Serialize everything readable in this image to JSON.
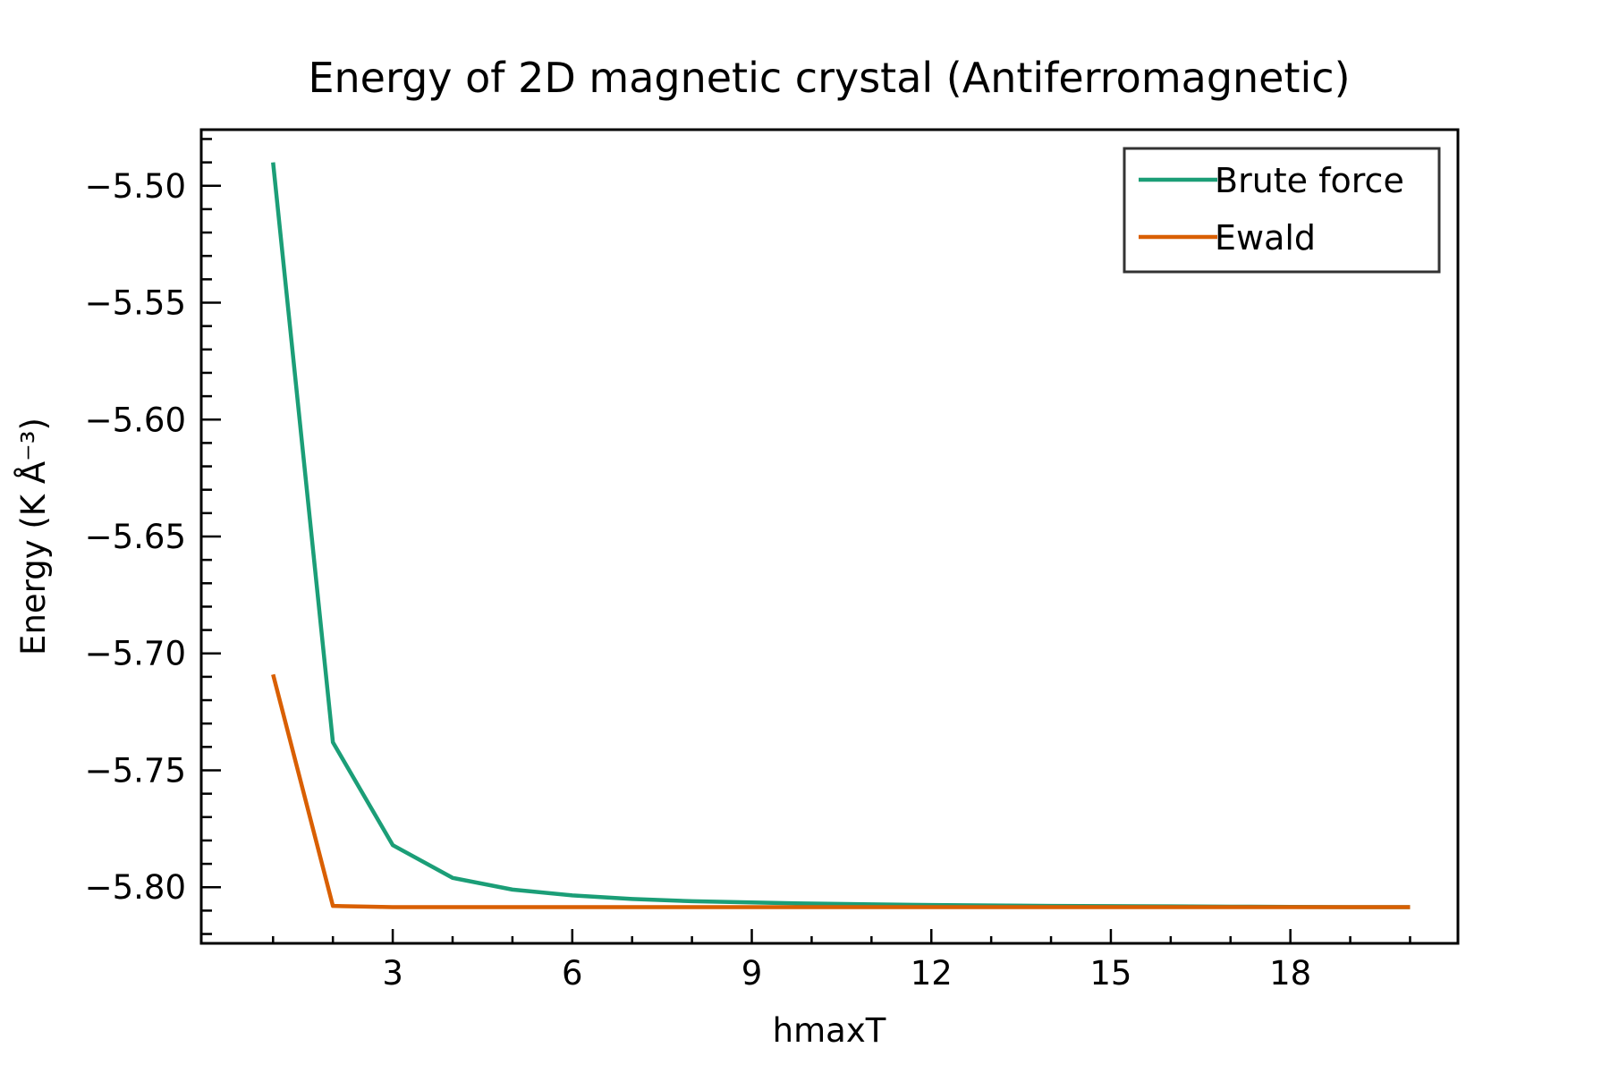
{
  "chart_data": {
    "type": "line",
    "title": "Energy of 2D magnetic crystal (Antiferromagnetic)",
    "xlabel": "hmaxT",
    "ylabel": "Energy (K Å⁻³)",
    "xlim": [
      -0.2,
      20.8
    ],
    "ylim": [
      -5.824,
      -5.476
    ],
    "xticks": [
      3,
      6,
      9,
      12,
      15,
      18
    ],
    "xtick_labels": [
      "3",
      "6",
      "9",
      "12",
      "15",
      "18"
    ],
    "yticks": [
      -5.5,
      -5.55,
      -5.6,
      -5.65,
      -5.7,
      -5.75,
      -5.8
    ],
    "ytick_labels": [
      "−5.50",
      "−5.55",
      "−5.60",
      "−5.65",
      "−5.70",
      "−5.75",
      "−5.80"
    ],
    "grid": false,
    "legend_position": "top-right",
    "x": [
      1,
      2,
      3,
      4,
      5,
      6,
      7,
      8,
      9,
      10,
      11,
      12,
      13,
      14,
      15,
      16,
      17,
      18,
      19,
      20
    ],
    "series": [
      {
        "name": "Brute force",
        "color": "#1b9e77",
        "values": [
          -5.49,
          -5.738,
          -5.782,
          -5.796,
          -5.801,
          -5.8035,
          -5.805,
          -5.806,
          -5.8065,
          -5.807,
          -5.8073,
          -5.8076,
          -5.8078,
          -5.808,
          -5.8081,
          -5.8082,
          -5.8083,
          -5.8084,
          -5.8085,
          -5.8085
        ]
      },
      {
        "name": "Ewald",
        "color": "#d95f02",
        "values": [
          -5.709,
          -5.808,
          -5.8085,
          -5.8085,
          -5.8085,
          -5.8085,
          -5.8085,
          -5.8085,
          -5.8085,
          -5.8085,
          -5.8085,
          -5.8085,
          -5.8085,
          -5.8085,
          -5.8085,
          -5.8085,
          -5.8085,
          -5.8085,
          -5.8085,
          -5.8085
        ]
      }
    ]
  }
}
